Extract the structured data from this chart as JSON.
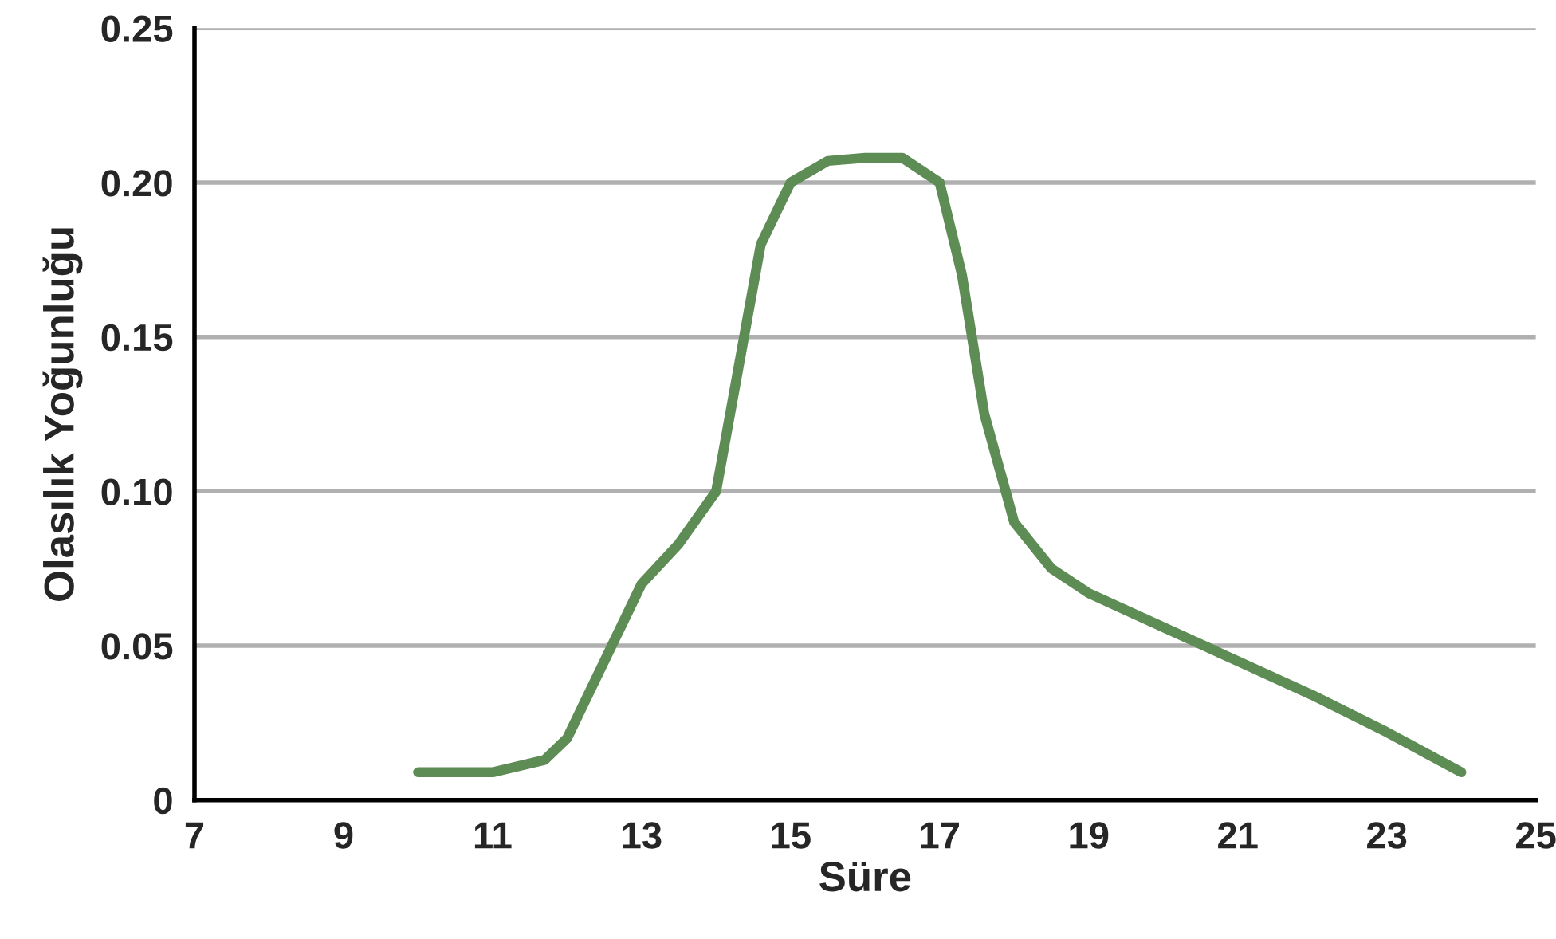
{
  "chart_data": {
    "type": "line",
    "xlabel": "Süre",
    "ylabel": "Olasılık Yoğunluğu",
    "x": [
      10,
      11,
      11.7,
      12,
      12.5,
      13,
      13.5,
      14,
      14.3,
      14.6,
      15,
      15.5,
      16,
      16.5,
      17,
      17.3,
      17.6,
      18,
      18.5,
      19,
      20,
      21,
      22,
      23,
      24
    ],
    "series": [
      {
        "color": "#5e8c55",
        "values": [
          0.009,
          0.009,
          0.013,
          0.02,
          0.045,
          0.07,
          0.083,
          0.1,
          0.14,
          0.18,
          0.2,
          0.207,
          0.208,
          0.208,
          0.2,
          0.17,
          0.125,
          0.09,
          0.075,
          0.067,
          0.056,
          0.045,
          0.034,
          0.022,
          0.009
        ]
      }
    ],
    "xlim": [
      7,
      25
    ],
    "xticks": [
      7,
      9,
      11,
      13,
      15,
      17,
      19,
      21,
      23,
      25
    ],
    "ylim": [
      0,
      0.25
    ],
    "yticks": [
      0,
      {
        "value": 0.05,
        "label": "0.05"
      },
      {
        "value": 0.1,
        "label": "0.10"
      },
      {
        "value": 0.15,
        "label": "0.15"
      },
      {
        "value": 0.2,
        "label": "0.20"
      },
      {
        "value": 0.25,
        "label": "0.25"
      }
    ],
    "grid": "y",
    "marker": "none",
    "line_style": "solid"
  }
}
